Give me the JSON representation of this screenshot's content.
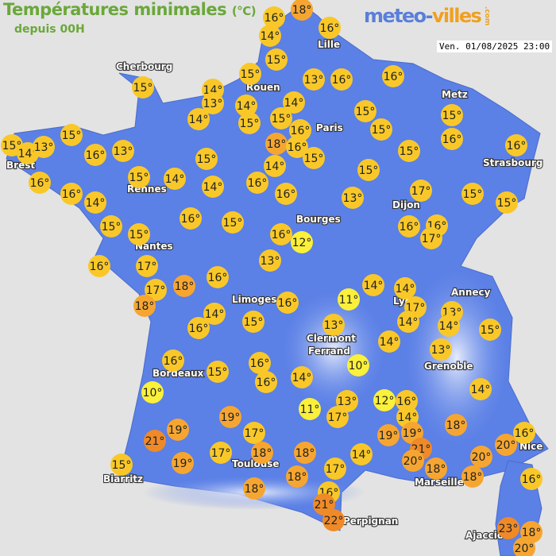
{
  "header": {
    "title": "Températures minimales",
    "unit": "(°C)",
    "subtitle": "depuis 00H",
    "timestamp": "Ven. 01/08/2025 23:00"
  },
  "logo": {
    "text_a": "meteo-",
    "text_b": "villes",
    "suffix": ".com"
  },
  "colors": {
    "land": "#5b80e6",
    "mountain": "#c9d4f2",
    "cold": "#fbf03a",
    "mild": "#f9c828",
    "warm": "#f6a630",
    "hot": "#ef8a28"
  },
  "cities": [
    "Lille",
    "Cherbourg",
    "Rouen",
    "Paris",
    "Metz",
    "Strasbourg",
    "Brest",
    "Rennes",
    "Dijon",
    "Bourges",
    "Nantes",
    "Limoges",
    "Annecy",
    "Lyon",
    "Clermont",
    "Ferrand",
    "Grenoble",
    "Bordeaux",
    "Nice",
    "Biarritz",
    "Toulouse",
    "Marseille",
    "Perpignan",
    "Ajaccio"
  ],
  "temperatures": [
    16,
    18,
    14,
    16,
    15,
    15,
    14,
    13,
    15,
    13,
    16,
    16,
    15,
    16,
    14,
    14,
    15,
    15,
    14,
    15,
    14,
    13,
    15,
    16,
    13,
    16,
    18,
    16,
    15,
    15,
    15,
    15,
    16,
    16,
    15,
    14,
    15,
    14,
    16,
    14,
    15,
    16,
    13,
    17,
    15,
    15,
    16,
    14,
    15,
    15,
    16,
    15,
    16,
    12,
    16,
    16,
    17,
    16,
    17,
    17,
    18,
    18,
    16,
    13,
    14,
    14,
    17,
    14,
    16,
    11,
    13,
    14,
    15,
    14,
    16,
    15,
    13,
    14,
    13,
    16,
    15,
    16,
    16,
    14,
    10,
    10,
    14,
    13,
    11,
    12,
    16,
    19,
    17,
    14,
    19,
    19,
    19,
    17,
    18,
    16,
    21,
    17,
    18,
    18,
    14,
    21,
    20,
    20,
    18,
    20,
    15,
    19,
    17,
    18,
    18,
    16,
    18,
    16,
    21,
    22,
    23,
    18,
    20,
    21
  ]
}
